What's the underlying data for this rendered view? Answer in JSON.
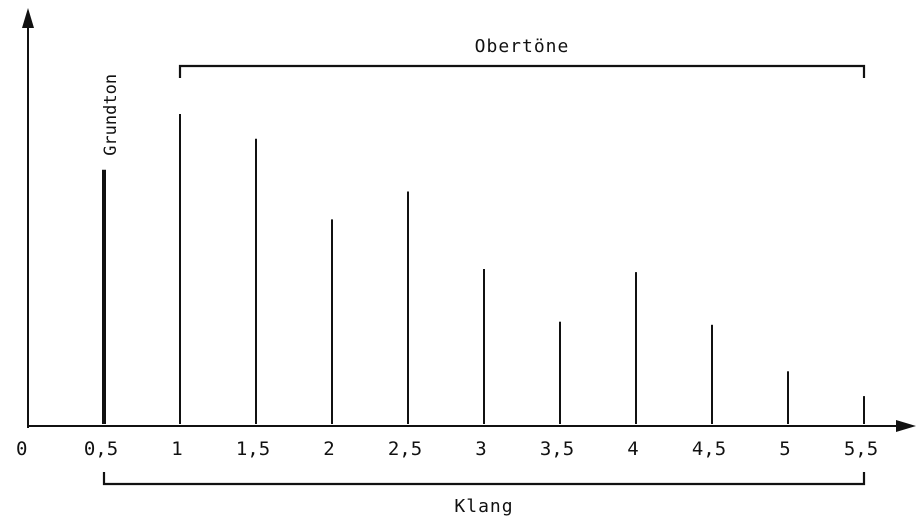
{
  "chart_data": {
    "type": "bar",
    "title": "",
    "xlabel": "",
    "ylabel": "",
    "x_tick_labels": [
      "0",
      "0,5",
      "1",
      "1,5",
      "2",
      "2,5",
      "3",
      "3,5",
      "4",
      "4,5",
      "5",
      "5,5"
    ],
    "x_range": [
      0,
      5.5
    ],
    "y_range": [
      0,
      1
    ],
    "grid": false,
    "legend": "none",
    "series": [
      {
        "x": [
          0.5,
          1,
          1.5,
          2,
          2.5,
          3,
          3.5,
          4,
          4.5,
          5,
          5.5
        ],
        "values": [
          0.82,
          1.0,
          0.92,
          0.66,
          0.75,
          0.5,
          0.33,
          0.49,
          0.32,
          0.17,
          0.09
        ]
      }
    ],
    "annotations": {
      "fundamental_label": "Grundton",
      "overtones_label": "Obertöne",
      "overtones_span": [
        1,
        5.5
      ],
      "sound_label": "Klang",
      "sound_span": [
        0.5,
        5.5
      ]
    },
    "colors": {
      "ink": "#111111",
      "background": "#ffffff"
    }
  }
}
